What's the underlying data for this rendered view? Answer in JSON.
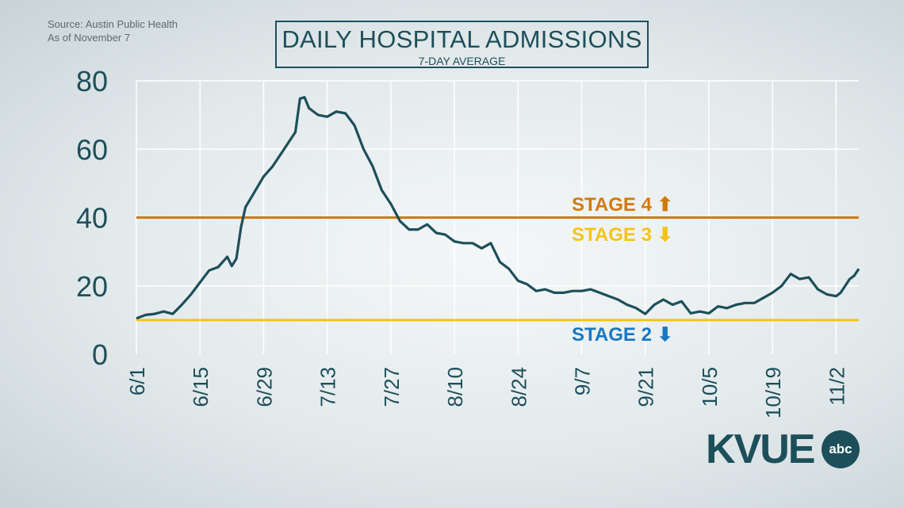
{
  "source": {
    "line1": "Source: Austin Public Health",
    "line2": "As of November 7"
  },
  "header": {
    "title": "DAILY HOSPITAL ADMISSIONS",
    "subtitle": "7-DAY AVERAGE"
  },
  "logo": {
    "text": "KVUE",
    "badge": "abc"
  },
  "colors": {
    "line": "#1d4f5a",
    "stage4": "#d17a0f",
    "stage3": "#f2c418",
    "stage2": "#1a78c2",
    "grid": "#ffffff"
  },
  "chart_data": {
    "type": "line",
    "title": "DAILY HOSPITAL ADMISSIONS",
    "subtitle": "7-DAY AVERAGE",
    "xlabel": "",
    "ylabel": "",
    "ylim": [
      0,
      80
    ],
    "yticks": [
      0,
      20,
      40,
      60,
      80
    ],
    "xticks": [
      "6/1",
      "6/15",
      "6/29",
      "7/13",
      "7/27",
      "8/10",
      "8/24",
      "9/7",
      "9/21",
      "10/5",
      "10/19",
      "11/2"
    ],
    "grid": true,
    "series": [
      {
        "values": [
          {
            "x": "6/1",
            "y": 10.5
          },
          {
            "x": "6/3",
            "y": 11.5
          },
          {
            "x": "6/5",
            "y": 11.8
          },
          {
            "x": "6/7",
            "y": 12.5
          },
          {
            "x": "6/9",
            "y": 11.8
          },
          {
            "x": "6/11",
            "y": 14.5
          },
          {
            "x": "6/13",
            "y": 17.5
          },
          {
            "x": "6/15",
            "y": 21.0
          },
          {
            "x": "6/17",
            "y": 24.5
          },
          {
            "x": "6/19",
            "y": 25.5
          },
          {
            "x": "6/21",
            "y": 28.5
          },
          {
            "x": "6/22",
            "y": 25.8
          },
          {
            "x": "6/23",
            "y": 28.0
          },
          {
            "x": "6/24",
            "y": 37.0
          },
          {
            "x": "6/25",
            "y": 43.0
          },
          {
            "x": "6/27",
            "y": 47.5
          },
          {
            "x": "6/29",
            "y": 52.0
          },
          {
            "x": "7/1",
            "y": 55.0
          },
          {
            "x": "7/3",
            "y": 59.0
          },
          {
            "x": "7/5",
            "y": 63.0
          },
          {
            "x": "7/6",
            "y": 65.0
          },
          {
            "x": "7/7",
            "y": 74.8
          },
          {
            "x": "7/8",
            "y": 75.2
          },
          {
            "x": "7/9",
            "y": 72.0
          },
          {
            "x": "7/11",
            "y": 70.0
          },
          {
            "x": "7/13",
            "y": 69.5
          },
          {
            "x": "7/15",
            "y": 71.0
          },
          {
            "x": "7/17",
            "y": 70.5
          },
          {
            "x": "7/19",
            "y": 67.0
          },
          {
            "x": "7/21",
            "y": 60.0
          },
          {
            "x": "7/23",
            "y": 55.0
          },
          {
            "x": "7/25",
            "y": 48.0
          },
          {
            "x": "7/27",
            "y": 44.0
          },
          {
            "x": "7/29",
            "y": 39.0
          },
          {
            "x": "7/31",
            "y": 36.5
          },
          {
            "x": "8/2",
            "y": 36.5
          },
          {
            "x": "8/4",
            "y": 38.0
          },
          {
            "x": "8/6",
            "y": 35.5
          },
          {
            "x": "8/8",
            "y": 35.0
          },
          {
            "x": "8/10",
            "y": 33.0
          },
          {
            "x": "8/12",
            "y": 32.5
          },
          {
            "x": "8/14",
            "y": 32.5
          },
          {
            "x": "8/16",
            "y": 31.0
          },
          {
            "x": "8/18",
            "y": 32.5
          },
          {
            "x": "8/20",
            "y": 27.0
          },
          {
            "x": "8/22",
            "y": 25.0
          },
          {
            "x": "8/24",
            "y": 21.5
          },
          {
            "x": "8/26",
            "y": 20.5
          },
          {
            "x": "8/28",
            "y": 18.5
          },
          {
            "x": "8/30",
            "y": 19.0
          },
          {
            "x": "9/1",
            "y": 18.0
          },
          {
            "x": "9/3",
            "y": 18.0
          },
          {
            "x": "9/5",
            "y": 18.5
          },
          {
            "x": "9/7",
            "y": 18.5
          },
          {
            "x": "9/9",
            "y": 19.0
          },
          {
            "x": "9/11",
            "y": 18.0
          },
          {
            "x": "9/13",
            "y": 17.0
          },
          {
            "x": "9/15",
            "y": 16.0
          },
          {
            "x": "9/17",
            "y": 14.5
          },
          {
            "x": "9/19",
            "y": 13.5
          },
          {
            "x": "9/21",
            "y": 11.8
          },
          {
            "x": "9/23",
            "y": 14.5
          },
          {
            "x": "9/25",
            "y": 16.0
          },
          {
            "x": "9/27",
            "y": 14.5
          },
          {
            "x": "9/29",
            "y": 15.5
          },
          {
            "x": "10/1",
            "y": 12.0
          },
          {
            "x": "10/3",
            "y": 12.5
          },
          {
            "x": "10/5",
            "y": 12.0
          },
          {
            "x": "10/7",
            "y": 14.0
          },
          {
            "x": "10/9",
            "y": 13.5
          },
          {
            "x": "10/11",
            "y": 14.5
          },
          {
            "x": "10/13",
            "y": 15.0
          },
          {
            "x": "10/15",
            "y": 15.0
          },
          {
            "x": "10/17",
            "y": 16.5
          },
          {
            "x": "10/19",
            "y": 18.0
          },
          {
            "x": "10/21",
            "y": 20.0
          },
          {
            "x": "10/23",
            "y": 23.5
          },
          {
            "x": "10/25",
            "y": 22.0
          },
          {
            "x": "10/27",
            "y": 22.5
          },
          {
            "x": "10/29",
            "y": 19.0
          },
          {
            "x": "10/31",
            "y": 17.5
          },
          {
            "x": "11/2",
            "y": 17.0
          },
          {
            "x": "11/3",
            "y": 18.0
          },
          {
            "x": "11/4",
            "y": 20.0
          },
          {
            "x": "11/5",
            "y": 22.0
          },
          {
            "x": "11/6",
            "y": 23.0
          },
          {
            "x": "11/7",
            "y": 25.0
          }
        ]
      }
    ],
    "thresholds": [
      {
        "label": "STAGE 4",
        "y": 40,
        "arrow": "up",
        "color": "#d17a0f"
      },
      {
        "label": "STAGE 3",
        "y": 40,
        "arrow": "down",
        "color": "#f2c418"
      },
      {
        "label": "STAGE 2",
        "y": 10,
        "arrow": "down",
        "color": "#1a78c2"
      }
    ]
  }
}
